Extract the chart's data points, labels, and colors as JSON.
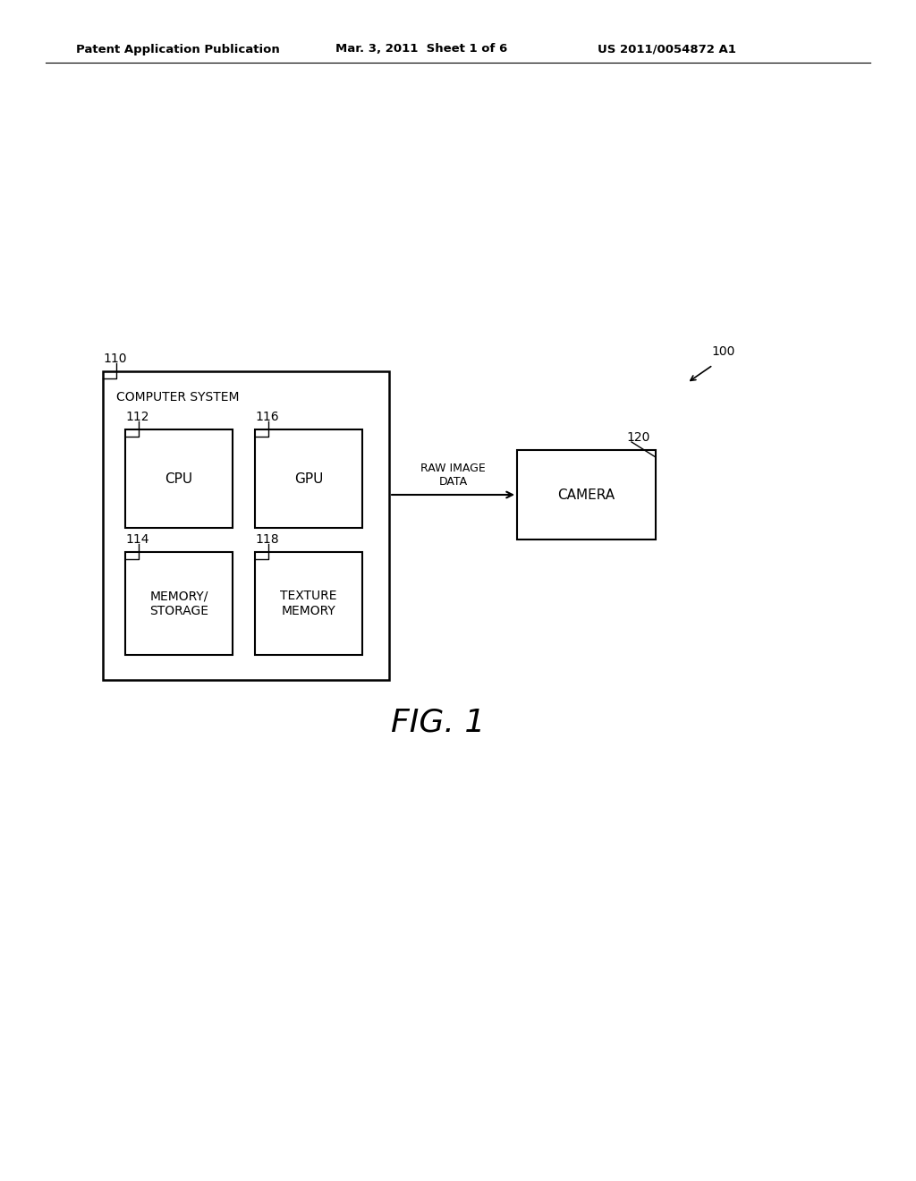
{
  "bg_color": "#ffffff",
  "header_left": "Patent Application Publication",
  "header_mid": "Mar. 3, 2011  Sheet 1 of 6",
  "header_right": "US 2011/0054872 A1",
  "fig_label": "FIG. 1",
  "label_100": "100",
  "label_110": "110",
  "label_112": "112",
  "label_114": "114",
  "label_116": "116",
  "label_118": "118",
  "label_120": "120",
  "computer_system_label": "COMPUTER SYSTEM",
  "cpu_label": "CPU",
  "gpu_label": "GPU",
  "memory_label": "MEMORY/\nSTORAGE",
  "texture_label": "TEXTURE\nMEMORY",
  "camera_label": "CAMERA",
  "arrow_label": "RAW IMAGE\nDATA",
  "line_color": "#000000",
  "text_color": "#000000"
}
